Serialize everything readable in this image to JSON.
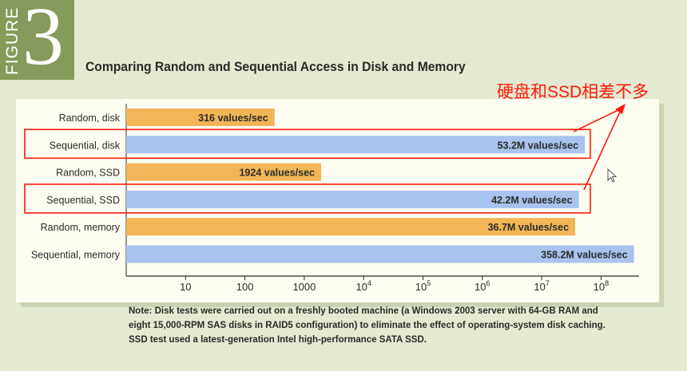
{
  "figure": {
    "word": "FIGURE",
    "number": "3"
  },
  "colors": {
    "random": "#f2b557",
    "sequential": "#a9c2ee",
    "annotation": "#ff1a0a",
    "badge": "#859a5b"
  },
  "annotation": {
    "text": "硬盘和SSD相差不多"
  },
  "note": {
    "lines": [
      "Note: Disk tests were carried out on a freshly booted machine (a Windows 2003 server with 64-GB RAM and",
      "eight 15,000-RPM SAS disks in RAID5 configuration) to eliminate the effect of operating-system disk caching.",
      "SSD test used a latest-generation Intel high-performance SATA SSD."
    ]
  },
  "chart_data": {
    "type": "bar",
    "orientation": "horizontal",
    "scale": "log",
    "title": "Comparing Random and Sequential Access in Disk and Memory",
    "categories": [
      "Random, disk",
      "Sequential, disk",
      "Random, SSD",
      "Sequential, SSD",
      "Random, memory",
      "Sequential, memory"
    ],
    "values": [
      316,
      53200000,
      1924,
      42200000,
      36700000,
      358200000
    ],
    "value_labels": [
      "316 values/sec",
      "53.2M values/sec",
      "1924 values/sec",
      "42.2M values/sec",
      "36.7M values/sec",
      "358.2M values/sec"
    ],
    "bar_kinds": [
      "random",
      "sequential",
      "random",
      "sequential",
      "random",
      "sequential"
    ],
    "highlighted": [
      false,
      true,
      false,
      true,
      false,
      false
    ],
    "x_ticks": [
      {
        "value": 10,
        "base": "10",
        "exp": ""
      },
      {
        "value": 100,
        "base": "100",
        "exp": ""
      },
      {
        "value": 1000,
        "base": "1000",
        "exp": ""
      },
      {
        "value": 10000,
        "base": "10",
        "exp": "4"
      },
      {
        "value": 100000,
        "base": "10",
        "exp": "5"
      },
      {
        "value": 1000000,
        "base": "10",
        "exp": "6"
      },
      {
        "value": 10000000,
        "base": "10",
        "exp": "7"
      },
      {
        "value": 100000000,
        "base": "10",
        "exp": "8"
      }
    ],
    "xlim": [
      1,
      400000000
    ],
    "grid": false,
    "legend": "none"
  }
}
